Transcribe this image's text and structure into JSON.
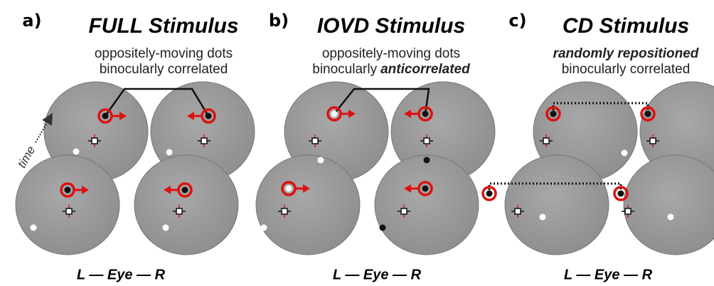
{
  "panels": [
    {
      "label": "a)",
      "title": "FULL Stimulus",
      "subtitle": [
        [
          {
            "text": "oppositely-moving dots"
          }
        ],
        [
          {
            "text": "binocularly correlated"
          }
        ]
      ],
      "eye_label": "L  —  Eye  — R"
    },
    {
      "label": "b)",
      "title": "IOVD Stimulus",
      "subtitle": [
        [
          {
            "text": "oppositely-moving dots"
          }
        ],
        [
          {
            "text": "binocularly"
          },
          {
            "text": "anticorrelated",
            "style": "bold-italic"
          }
        ]
      ],
      "eye_label": "L  —  Eye  — R"
    },
    {
      "label": "c)",
      "title": "CD Stimulus",
      "subtitle": [
        [
          {
            "text": "randomly repositioned",
            "style": "bold-italic"
          }
        ],
        [
          {
            "text": "binocularly correlated"
          }
        ]
      ],
      "eye_label": "L  —  Eye  — R"
    }
  ],
  "time_label": "time"
}
